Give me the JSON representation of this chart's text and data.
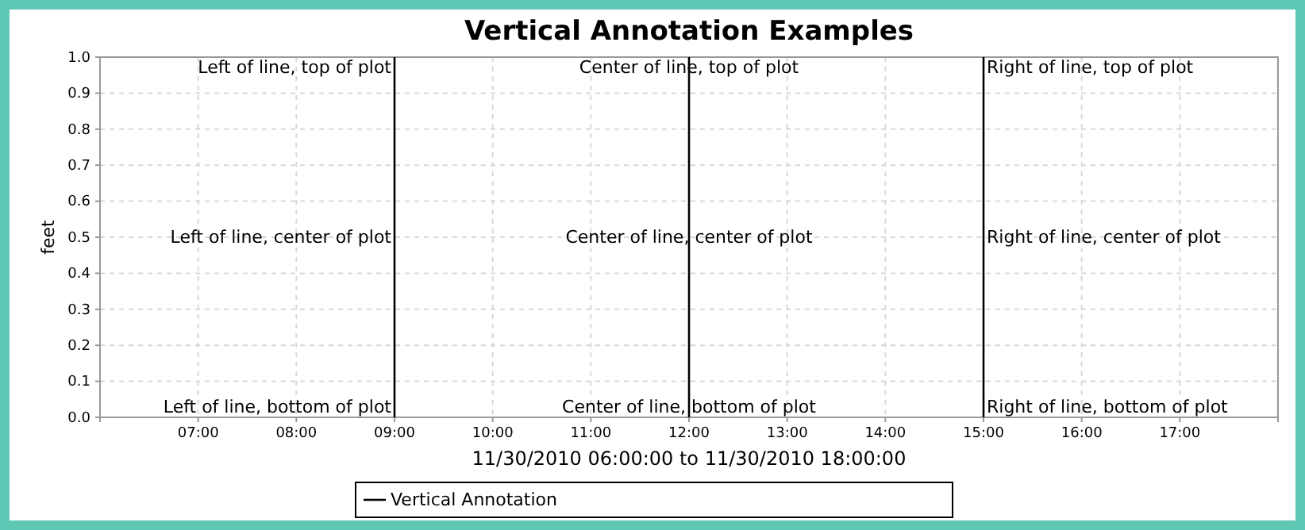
{
  "chart_data": {
    "type": "line",
    "title": "Vertical Annotation Examples",
    "xlabel": "11/30/2010 06:00:00 to 11/30/2010 18:00:00",
    "ylabel": "feet",
    "xlim": [
      6,
      18
    ],
    "xticks": [
      {
        "value": 7,
        "label": "07:00"
      },
      {
        "value": 8,
        "label": "08:00"
      },
      {
        "value": 9,
        "label": "09:00"
      },
      {
        "value": 10,
        "label": "10:00"
      },
      {
        "value": 11,
        "label": "11:00"
      },
      {
        "value": 12,
        "label": "12:00"
      },
      {
        "value": 13,
        "label": "13:00"
      },
      {
        "value": 14,
        "label": "14:00"
      },
      {
        "value": 15,
        "label": "15:00"
      },
      {
        "value": 16,
        "label": "16:00"
      },
      {
        "value": 17,
        "label": "17:00"
      }
    ],
    "ylim": [
      0,
      1
    ],
    "yticks": [
      {
        "value": 0,
        "label": "0.0"
      },
      {
        "value": 0.1,
        "label": "0.1"
      },
      {
        "value": 0.2,
        "label": "0.2"
      },
      {
        "value": 0.3,
        "label": "0.3"
      },
      {
        "value": 0.4,
        "label": "0.4"
      },
      {
        "value": 0.5,
        "label": "0.5"
      },
      {
        "value": 0.6,
        "label": "0.6"
      },
      {
        "value": 0.7,
        "label": "0.7"
      },
      {
        "value": 0.8,
        "label": "0.8"
      },
      {
        "value": 0.9,
        "label": "0.9"
      },
      {
        "value": 1,
        "label": "1.0"
      }
    ],
    "series": [
      {
        "name": "Vertical Annotation",
        "color": "#000000",
        "x": [
          9,
          9,
          9
        ],
        "values": [
          0,
          0.5,
          1
        ]
      },
      {
        "color": "#000000",
        "x": [
          12,
          12,
          12
        ],
        "values": [
          0,
          0.5,
          1
        ]
      },
      {
        "color": "#000000",
        "x": [
          15,
          15,
          15
        ],
        "values": [
          0,
          0.5,
          1
        ]
      }
    ],
    "annotations": [
      {
        "text": "Left of line, top of plot",
        "x": 9,
        "y": 1
      },
      {
        "text": "Left of line, center of plot",
        "x": 9,
        "y": 0.5
      },
      {
        "text": "Left of line, bottom of plot",
        "x": 9,
        "y": 0
      },
      {
        "text": "Center of line, top of plot",
        "x": 12,
        "y": 1
      },
      {
        "text": "Center of line, center of plot",
        "x": 12,
        "y": 0.5
      },
      {
        "text": "Center of line, bottom of plot",
        "x": 12,
        "y": 0
      },
      {
        "text": "Right of line, top of plot",
        "x": 15,
        "y": 1
      },
      {
        "text": "Right of line, center of plot",
        "x": 15,
        "y": 0.5
      },
      {
        "text": "Right of line, bottom of plot",
        "x": 15,
        "y": 0
      }
    ],
    "grid": true,
    "legend": "bottom",
    "marker": "none",
    "line_style": "solid"
  }
}
